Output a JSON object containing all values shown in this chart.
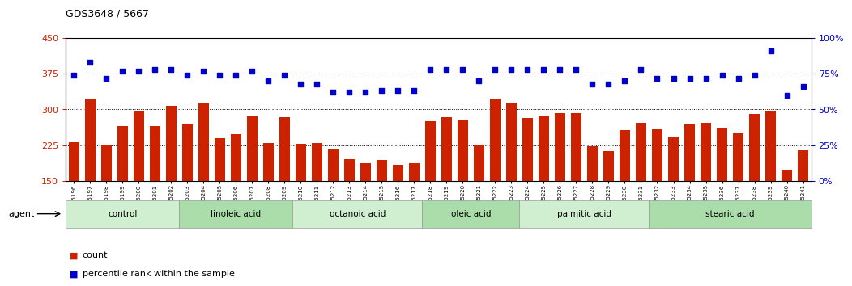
{
  "title": "GDS3648 / 5667",
  "samples": [
    "GSM525196",
    "GSM525197",
    "GSM525198",
    "GSM525199",
    "GSM525200",
    "GSM525201",
    "GSM525202",
    "GSM525203",
    "GSM525204",
    "GSM525205",
    "GSM525206",
    "GSM525207",
    "GSM525208",
    "GSM525209",
    "GSM525210",
    "GSM525211",
    "GSM525212",
    "GSM525213",
    "GSM525214",
    "GSM525215",
    "GSM525216",
    "GSM525217",
    "GSM525218",
    "GSM525219",
    "GSM525220",
    "GSM525221",
    "GSM525222",
    "GSM525223",
    "GSM525224",
    "GSM525225",
    "GSM525226",
    "GSM525227",
    "GSM525228",
    "GSM525229",
    "GSM525230",
    "GSM525231",
    "GSM525232",
    "GSM525233",
    "GSM525234",
    "GSM525235",
    "GSM525236",
    "GSM525237",
    "GSM525238",
    "GSM525239",
    "GSM525240",
    "GSM525241"
  ],
  "bar_values": [
    232,
    322,
    226,
    265,
    297,
    265,
    307,
    268,
    312,
    240,
    248,
    285,
    230,
    283,
    228,
    230,
    218,
    195,
    188,
    194,
    183,
    188,
    275,
    283,
    277,
    225,
    322,
    312,
    282,
    287,
    293,
    293,
    222,
    212,
    257,
    272,
    258,
    243,
    268,
    272,
    260,
    250,
    290,
    297,
    173,
    215
  ],
  "dot_values_pct": [
    74,
    83,
    72,
    77,
    77,
    78,
    78,
    74,
    77,
    74,
    74,
    77,
    70,
    74,
    68,
    68,
    62,
    62,
    62,
    63,
    63,
    63,
    78,
    78,
    78,
    70,
    78,
    78,
    78,
    78,
    78,
    78,
    68,
    68,
    70,
    78,
    72,
    72,
    72,
    72,
    74,
    72,
    74,
    91,
    60,
    66
  ],
  "groups": [
    {
      "label": "control",
      "start": 0,
      "end": 7,
      "color": "#c8eec8"
    },
    {
      "label": "linoleic acid",
      "start": 7,
      "end": 14,
      "color": "#a8dea8"
    },
    {
      "label": "octanoic acid",
      "start": 14,
      "end": 22,
      "color": "#c8eec8"
    },
    {
      "label": "oleic acid",
      "start": 22,
      "end": 28,
      "color": "#a8dea8"
    },
    {
      "label": "palmitic acid",
      "start": 28,
      "end": 36,
      "color": "#c8eec8"
    },
    {
      "label": "stearic acid",
      "start": 36,
      "end": 46,
      "color": "#a8dea8"
    }
  ],
  "ylim_left": [
    150,
    450
  ],
  "ylim_right": [
    0,
    100
  ],
  "yticks_left": [
    150,
    225,
    300,
    375,
    450
  ],
  "yticks_right": [
    0,
    25,
    50,
    75,
    100
  ],
  "bar_color": "#cc2200",
  "dot_color": "#0000cc",
  "background_color": "#ffffff",
  "agent_label": "agent",
  "legend_count": "count",
  "legend_pct": "percentile rank within the sample"
}
